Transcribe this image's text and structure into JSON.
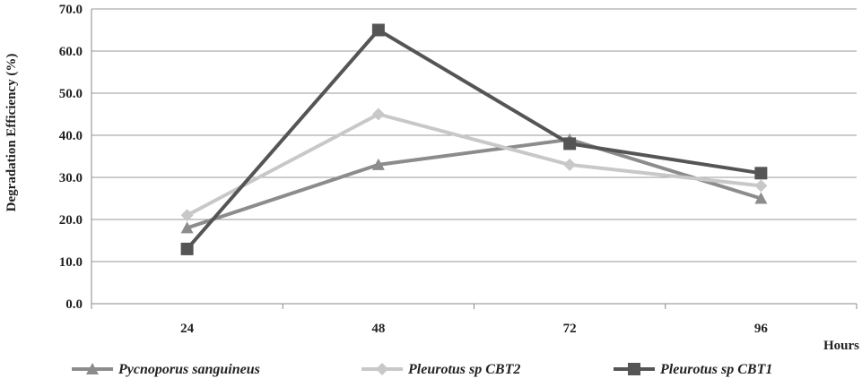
{
  "chart_data": {
    "type": "line",
    "title": "",
    "ylabel": "Degradation Efficiency (%)",
    "xlabel": "Hours",
    "categories": [
      "24",
      "48",
      "72",
      "96"
    ],
    "y_ticks": [
      "0.0",
      "10.0",
      "20.0",
      "30.0",
      "40.0",
      "50.0",
      "60.0",
      "70.0"
    ],
    "ylim": [
      0,
      70
    ],
    "grid": "horizontal",
    "legend_position": "bottom",
    "series": [
      {
        "name": "Pycnoporus sanguineus",
        "values": [
          18,
          33,
          39,
          25
        ],
        "color": "#8c8c8c",
        "marker": "triangle"
      },
      {
        "name": "Pleurotus sp CBT2",
        "values": [
          21,
          45,
          33,
          28
        ],
        "color": "#c8c8c8",
        "marker": "diamond"
      },
      {
        "name": "Pleurotus sp CBT1",
        "values": [
          13,
          65,
          38,
          31
        ],
        "color": "#555555",
        "marker": "square"
      }
    ]
  }
}
